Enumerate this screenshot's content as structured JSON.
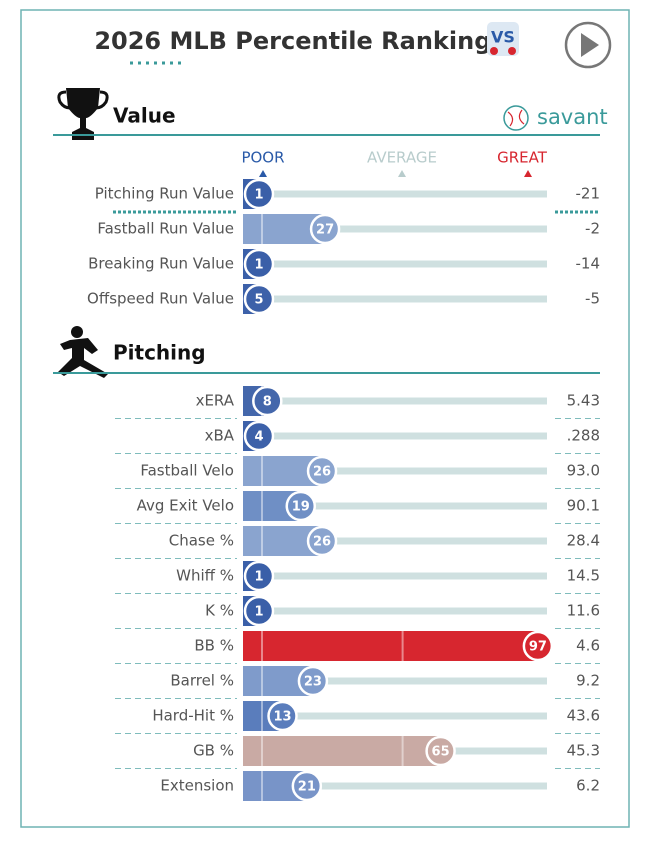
{
  "title": "2026 MLB Percentile Rankings",
  "logo": "VS",
  "brand": "savant",
  "scale_labels": [
    "POOR",
    "AVERAGE",
    "GREAT"
  ],
  "chart_data": [
    {
      "type": "bar",
      "title": "Value",
      "categories": [
        "Pitching Run Value",
        "Fastball Run Value",
        "Breaking Run Value",
        "Offspeed Run Value"
      ],
      "values": [
        1,
        27,
        1,
        5
      ],
      "stats": [
        "-21",
        "-2",
        "-14",
        "-5"
      ],
      "colors": [
        "#3a5fa8",
        "#8aa4cf",
        "#3a5fa8",
        "#3d61a9"
      ],
      "xlim": [
        0,
        100
      ]
    },
    {
      "type": "bar",
      "title": "Pitching",
      "categories": [
        "xERA",
        "xBA",
        "Fastball Velo",
        "Avg Exit Velo",
        "Chase %",
        "Whiff %",
        "K %",
        "BB %",
        "Barrel %",
        "Hard-Hit %",
        "GB %",
        "Extension"
      ],
      "values": [
        8,
        4,
        26,
        19,
        26,
        1,
        1,
        97,
        23,
        13,
        65,
        21
      ],
      "stats": [
        "5.43",
        ".288",
        "93.0",
        "90.1",
        "28.4",
        "14.5",
        "11.6",
        "4.6",
        "9.2",
        "43.6",
        "45.3",
        "6.2"
      ],
      "colors": [
        "#4467ab",
        "#3d61a9",
        "#8aa4cf",
        "#6f8fc5",
        "#8aa4cf",
        "#3a5fa8",
        "#3a5fa8",
        "#d7262f",
        "#7f9bcb",
        "#5a7dbc",
        "#c9aaa4",
        "#7894c8"
      ],
      "xlim": [
        0,
        100
      ]
    }
  ]
}
